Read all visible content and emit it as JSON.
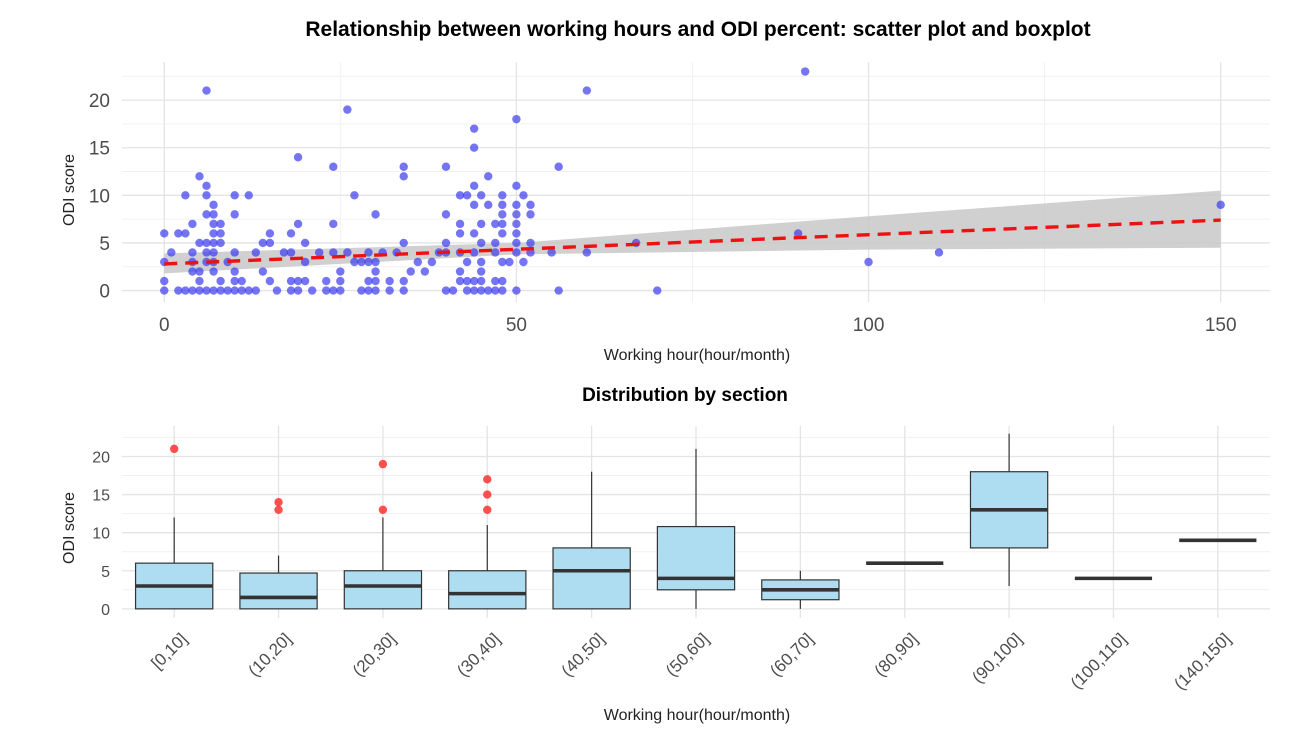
{
  "chart_data": [
    {
      "type": "scatter",
      "title": "Relationship between working hours and ODI percent: scatter plot and boxplot",
      "xlabel": "Working hour(hour/month)",
      "ylabel": "ODI score",
      "xlim": [
        -6,
        157
      ],
      "ylim": [
        -1.2,
        24
      ],
      "x_ticks": [
        0,
        50,
        100,
        150
      ],
      "y_ticks": [
        0,
        5,
        10,
        15,
        20
      ],
      "grid": true,
      "point_color": "#3b3bf0",
      "trend_color": "#ee1111",
      "band_color": "#c8c8c8",
      "points": [
        [
          0,
          0
        ],
        [
          0,
          1
        ],
        [
          0,
          3
        ],
        [
          0,
          6
        ],
        [
          1,
          4
        ],
        [
          2,
          0
        ],
        [
          2,
          6
        ],
        [
          3,
          0
        ],
        [
          3,
          6
        ],
        [
          3,
          10
        ],
        [
          4,
          0
        ],
        [
          4,
          2
        ],
        [
          4,
          3
        ],
        [
          4,
          4
        ],
        [
          4,
          7
        ],
        [
          5,
          0
        ],
        [
          5,
          1
        ],
        [
          5,
          2
        ],
        [
          5,
          5
        ],
        [
          5,
          12
        ],
        [
          6,
          0
        ],
        [
          6,
          3
        ],
        [
          6,
          4
        ],
        [
          6,
          5
        ],
        [
          6,
          8
        ],
        [
          6,
          10
        ],
        [
          6,
          11
        ],
        [
          6,
          21
        ],
        [
          7,
          0
        ],
        [
          7,
          2
        ],
        [
          7,
          3
        ],
        [
          7,
          4
        ],
        [
          7,
          5
        ],
        [
          7,
          6
        ],
        [
          7,
          7
        ],
        [
          7,
          8
        ],
        [
          7,
          9
        ],
        [
          8,
          0
        ],
        [
          8,
          1
        ],
        [
          8,
          5
        ],
        [
          8,
          6
        ],
        [
          8,
          7
        ],
        [
          9,
          0
        ],
        [
          9,
          3
        ],
        [
          10,
          0
        ],
        [
          10,
          1
        ],
        [
          10,
          2
        ],
        [
          10,
          4
        ],
        [
          10,
          8
        ],
        [
          10,
          10
        ],
        [
          11,
          0
        ],
        [
          11,
          1
        ],
        [
          12,
          10
        ],
        [
          12,
          0
        ],
        [
          13,
          0
        ],
        [
          13,
          4
        ],
        [
          14,
          2
        ],
        [
          14,
          5
        ],
        [
          15,
          1
        ],
        [
          15,
          5
        ],
        [
          15,
          6
        ],
        [
          16,
          0
        ],
        [
          17,
          4
        ],
        [
          18,
          0
        ],
        [
          18,
          1
        ],
        [
          18,
          4
        ],
        [
          18,
          6
        ],
        [
          19,
          0
        ],
        [
          19,
          1
        ],
        [
          19,
          7
        ],
        [
          19,
          14
        ],
        [
          20,
          1
        ],
        [
          20,
          3
        ],
        [
          20,
          5
        ],
        [
          21,
          0
        ],
        [
          22,
          4
        ],
        [
          23,
          0
        ],
        [
          23,
          1
        ],
        [
          24,
          0
        ],
        [
          24,
          4
        ],
        [
          24,
          7
        ],
        [
          24,
          13
        ],
        [
          25,
          0
        ],
        [
          25,
          1
        ],
        [
          25,
          2
        ],
        [
          26,
          4
        ],
        [
          26,
          19
        ],
        [
          27,
          3
        ],
        [
          27,
          10
        ],
        [
          28,
          0
        ],
        [
          28,
          3
        ],
        [
          29,
          0
        ],
        [
          29,
          1
        ],
        [
          29,
          3
        ],
        [
          29,
          4
        ],
        [
          30,
          0
        ],
        [
          30,
          1
        ],
        [
          30,
          2
        ],
        [
          30,
          3
        ],
        [
          30,
          8
        ],
        [
          31,
          4
        ],
        [
          32,
          0
        ],
        [
          32,
          1
        ],
        [
          33,
          4
        ],
        [
          34,
          5
        ],
        [
          34,
          13
        ],
        [
          34,
          12
        ],
        [
          34,
          0
        ],
        [
          34,
          1
        ],
        [
          35,
          2
        ],
        [
          36,
          3
        ],
        [
          37,
          2
        ],
        [
          38,
          3
        ],
        [
          39,
          4
        ],
        [
          40,
          0
        ],
        [
          40,
          4
        ],
        [
          40,
          5
        ],
        [
          40,
          8
        ],
        [
          40,
          13
        ],
        [
          41,
          0
        ],
        [
          42,
          1
        ],
        [
          42,
          2
        ],
        [
          42,
          4
        ],
        [
          42,
          6
        ],
        [
          42,
          7
        ],
        [
          42,
          10
        ],
        [
          43,
          0
        ],
        [
          43,
          1
        ],
        [
          43,
          3
        ],
        [
          43,
          10
        ],
        [
          44,
          0
        ],
        [
          44,
          1
        ],
        [
          44,
          4
        ],
        [
          44,
          6
        ],
        [
          44,
          9
        ],
        [
          44,
          11
        ],
        [
          44,
          15
        ],
        [
          44,
          17
        ],
        [
          45,
          0
        ],
        [
          45,
          1
        ],
        [
          45,
          2
        ],
        [
          45,
          3
        ],
        [
          45,
          5
        ],
        [
          45,
          7
        ],
        [
          45,
          10
        ],
        [
          46,
          0
        ],
        [
          46,
          9
        ],
        [
          46,
          12
        ],
        [
          47,
          0
        ],
        [
          47,
          1
        ],
        [
          47,
          4
        ],
        [
          47,
          5
        ],
        [
          47,
          7
        ],
        [
          48,
          0
        ],
        [
          48,
          1
        ],
        [
          48,
          3
        ],
        [
          48,
          6
        ],
        [
          48,
          7
        ],
        [
          48,
          8
        ],
        [
          48,
          9
        ],
        [
          48,
          10
        ],
        [
          49,
          3
        ],
        [
          50,
          0
        ],
        [
          50,
          4
        ],
        [
          50,
          5
        ],
        [
          50,
          6
        ],
        [
          50,
          7
        ],
        [
          50,
          8
        ],
        [
          50,
          9
        ],
        [
          50,
          11
        ],
        [
          50,
          18
        ],
        [
          51,
          3
        ],
        [
          51,
          10
        ],
        [
          52,
          4
        ],
        [
          52,
          5
        ],
        [
          52,
          8
        ],
        [
          52,
          9
        ],
        [
          55,
          4
        ],
        [
          56,
          0
        ],
        [
          56,
          13
        ],
        [
          60,
          4
        ],
        [
          60,
          21
        ],
        [
          67,
          5
        ],
        [
          70,
          0
        ],
        [
          90,
          6
        ],
        [
          91,
          23
        ],
        [
          100,
          3
        ],
        [
          110,
          4
        ],
        [
          150,
          9
        ]
      ],
      "trend": {
        "x": [
          0,
          150
        ],
        "y": [
          2.8,
          7.4
        ]
      },
      "band": {
        "x": [
          0,
          50,
          100,
          150
        ],
        "lower": [
          1.8,
          3.8,
          4.3,
          4.5
        ],
        "upper": [
          3.9,
          5.0,
          7.8,
          10.5
        ]
      }
    },
    {
      "type": "box",
      "title": "Distribution by section",
      "xlabel": "Working hour(hour/month)",
      "ylabel": "ODI score",
      "ylim": [
        -1.2,
        24
      ],
      "y_ticks": [
        0,
        5,
        10,
        15,
        20
      ],
      "grid": true,
      "box_color": "#aedcf0",
      "median_color": "#333333",
      "outlier_color": "#ff3030",
      "categories": [
        "[0,10]",
        "(10,20]",
        "(20,30]",
        "(30,40]",
        "(40,50]",
        "(50,60]",
        "(60,70]",
        "(80,90]",
        "(90,100]",
        "(100,110]",
        "(140,150]"
      ],
      "boxes": [
        {
          "q1": 0,
          "median": 3,
          "q3": 6,
          "whisker_low": 0,
          "whisker_high": 12,
          "outliers": [
            21
          ]
        },
        {
          "q1": 0,
          "median": 1.5,
          "q3": 4.7,
          "whisker_low": 0,
          "whisker_high": 7,
          "outliers": [
            13,
            14
          ]
        },
        {
          "q1": 0,
          "median": 3,
          "q3": 5,
          "whisker_low": 0,
          "whisker_high": 12,
          "outliers": [
            13,
            19
          ]
        },
        {
          "q1": 0,
          "median": 2,
          "q3": 5,
          "whisker_low": 0,
          "whisker_high": 11,
          "outliers": [
            13,
            15,
            17
          ]
        },
        {
          "q1": 0,
          "median": 5,
          "q3": 8,
          "whisker_low": 0,
          "whisker_high": 18,
          "outliers": []
        },
        {
          "q1": 2.5,
          "median": 4,
          "q3": 10.8,
          "whisker_low": 0,
          "whisker_high": 21,
          "outliers": []
        },
        {
          "q1": 1.2,
          "median": 2.5,
          "q3": 3.8,
          "whisker_low": 0,
          "whisker_high": 5,
          "outliers": []
        },
        {
          "q1": 6,
          "median": 6,
          "q3": 6,
          "whisker_low": 6,
          "whisker_high": 6,
          "outliers": []
        },
        {
          "q1": 8,
          "median": 13,
          "q3": 18,
          "whisker_low": 3,
          "whisker_high": 23,
          "outliers": []
        },
        {
          "q1": 4,
          "median": 4,
          "q3": 4,
          "whisker_low": 4,
          "whisker_high": 4,
          "outliers": []
        },
        {
          "q1": 9,
          "median": 9,
          "q3": 9,
          "whisker_low": 9,
          "whisker_high": 9,
          "outliers": []
        }
      ]
    }
  ]
}
